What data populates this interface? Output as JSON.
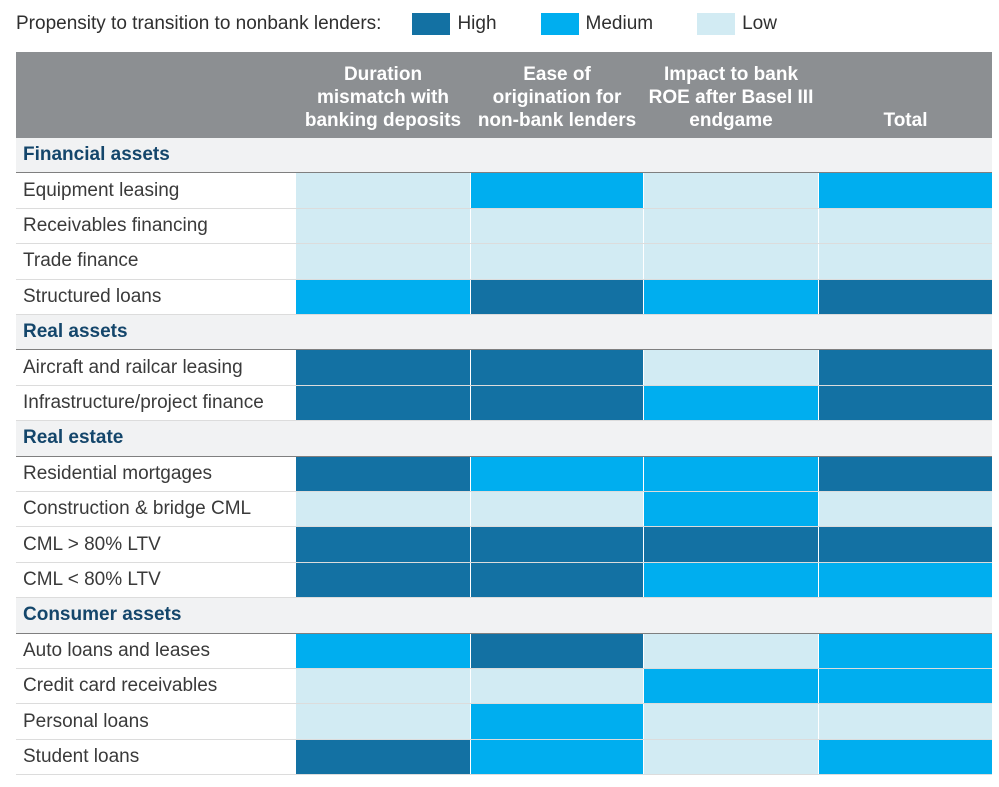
{
  "colors": {
    "High": "#1371a3",
    "Medium": "#00aeef",
    "Low": "#d2ebf3",
    "header_bg": "#8c8f92",
    "section_text": "#14466b"
  },
  "legend": {
    "title": "Propensity to transition to nonbank lenders:",
    "items": [
      {
        "label": "High",
        "level": "High"
      },
      {
        "label": "Medium",
        "level": "Medium"
      },
      {
        "label": "Low",
        "level": "Low"
      }
    ]
  },
  "chart_data": {
    "type": "table",
    "title": "Propensity to transition to nonbank lenders",
    "columns": [
      "Duration mismatch with banking deposits",
      "Ease of origination for non-bank lenders",
      "Impact to bank ROE after Basel III endgame",
      "Total"
    ],
    "column_lines": [
      [
        "Duration",
        "mismatch with",
        "banking deposits"
      ],
      [
        "Ease of",
        "origination for",
        "non-bank lenders"
      ],
      [
        "Impact to bank",
        "ROE after Basel III",
        "endgame"
      ],
      [
        "Total"
      ]
    ],
    "sections": [
      {
        "name": "Financial assets",
        "rows": [
          {
            "label": "Equipment leasing",
            "values": [
              "Low",
              "Medium",
              "Low",
              "Medium"
            ]
          },
          {
            "label": "Receivables financing",
            "values": [
              "Low",
              "Low",
              "Low",
              "Low"
            ]
          },
          {
            "label": "Trade finance",
            "values": [
              "Low",
              "Low",
              "Low",
              "Low"
            ]
          },
          {
            "label": "Structured loans",
            "values": [
              "Medium",
              "High",
              "Medium",
              "High"
            ]
          }
        ]
      },
      {
        "name": "Real assets",
        "rows": [
          {
            "label": "Aircraft and railcar leasing",
            "values": [
              "High",
              "High",
              "Low",
              "High"
            ]
          },
          {
            "label": "Infrastructure/project finance",
            "values": [
              "High",
              "High",
              "Medium",
              "High"
            ]
          }
        ]
      },
      {
        "name": "Real estate",
        "rows": [
          {
            "label": "Residential mortgages",
            "values": [
              "High",
              "Medium",
              "Medium",
              "High"
            ]
          },
          {
            "label": "Construction & bridge CML",
            "values": [
              "Low",
              "Low",
              "Medium",
              "Low"
            ]
          },
          {
            "label": "CML > 80% LTV",
            "values": [
              "High",
              "High",
              "High",
              "High"
            ]
          },
          {
            "label": "CML < 80% LTV",
            "values": [
              "High",
              "High",
              "Medium",
              "Medium"
            ]
          }
        ]
      },
      {
        "name": "Consumer assets",
        "rows": [
          {
            "label": "Auto loans and leases",
            "values": [
              "Medium",
              "High",
              "Low",
              "Medium"
            ]
          },
          {
            "label": "Credit card receivables",
            "values": [
              "Low",
              "Low",
              "Medium",
              "Medium"
            ]
          },
          {
            "label": "Personal loans",
            "values": [
              "Low",
              "Medium",
              "Low",
              "Low"
            ]
          },
          {
            "label": "Student loans",
            "values": [
              "High",
              "Medium",
              "Low",
              "Medium"
            ]
          }
        ]
      }
    ]
  }
}
